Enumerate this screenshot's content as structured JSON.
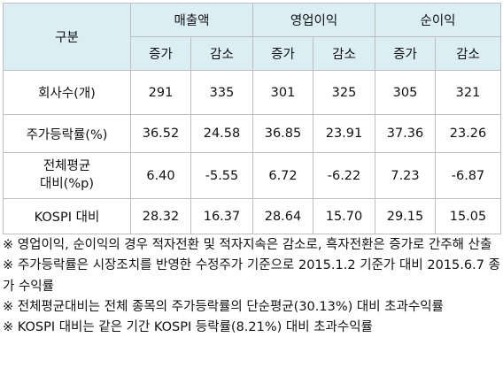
{
  "table": {
    "corner": "구분",
    "groups": [
      "매출액",
      "영업이익",
      "순이익"
    ],
    "subheaders": [
      "증가",
      "감소",
      "증가",
      "감소",
      "증가",
      "감소"
    ],
    "rows": [
      {
        "label": "회사수(개)",
        "values": [
          "291",
          "335",
          "301",
          "325",
          "305",
          "321"
        ]
      },
      {
        "label": "주가등락률(%)",
        "values": [
          "36.52",
          "24.58",
          "36.85",
          "23.91",
          "37.36",
          "23.26"
        ]
      },
      {
        "label": "전체평균 대비(%p)",
        "label_line1": "전체평균",
        "label_line2": "대비(%p)",
        "values": [
          "6.40",
          "-5.55",
          "6.72",
          "-6.22",
          "7.23",
          "-6.87"
        ]
      },
      {
        "label": "KOSPI 대비",
        "values": [
          "28.32",
          "16.37",
          "28.64",
          "15.70",
          "29.15",
          "15.05"
        ]
      }
    ]
  },
  "notes": [
    "※ 영업이익, 순이익의 경우 적자전환 및 적자지속은 감소로, 흑자전환은 증가로 간주해 산출",
    "※ 주가등락률은 시장조치를 반영한 수정주가 기준으로 2015.1.2 기준가 대비 2015.6.7 종가 수익률",
    "※ 전체평균대비는 전체 종목의 주가등락률의 단순평균(30.13%) 대비 초과수익률",
    "※ KOSPI 대비는 같은 기간 KOSPI 등락률(8.21%) 대비 초과수익률"
  ]
}
